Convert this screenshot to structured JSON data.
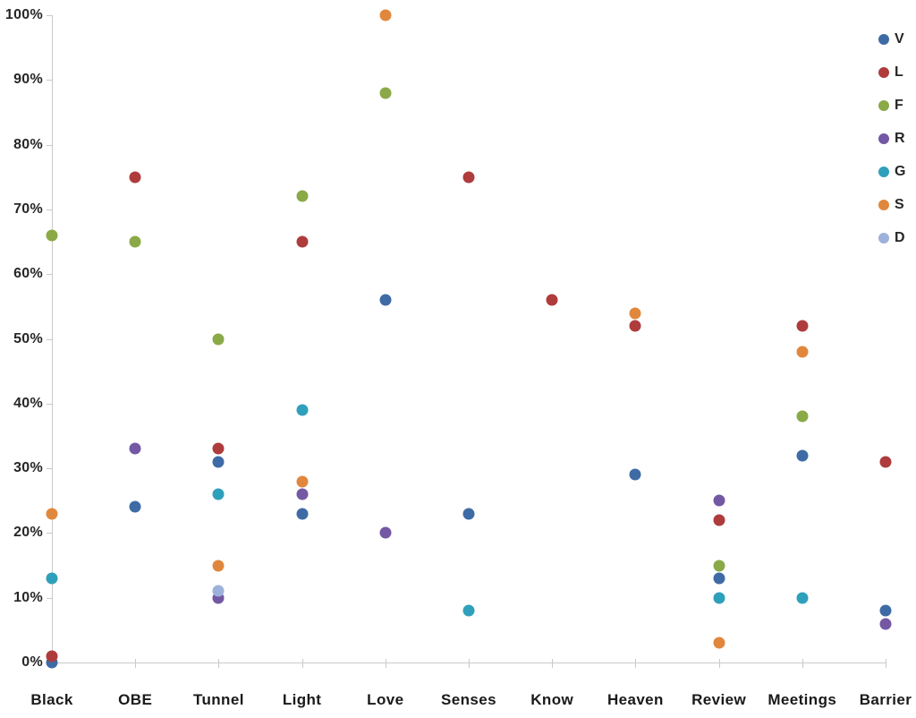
{
  "background": "#FFFFFF",
  "axis_colors": {
    "line": "#C9C9C9",
    "text": "#262626"
  },
  "chart_data": {
    "type": "scatter",
    "title": "",
    "xlabel": "",
    "ylabel": "",
    "grid": false,
    "categories": [
      "Black",
      "OBE",
      "Tunnel",
      "Light",
      "Love",
      "Senses",
      "Know",
      "Heaven",
      "Review",
      "Meetings",
      "Barrier"
    ],
    "series": [
      {
        "name": "V",
        "color": "#3E6BA5",
        "values": [
          0,
          24,
          31,
          23,
          56,
          23,
          null,
          29,
          13,
          32,
          8
        ]
      },
      {
        "name": "L",
        "color": "#AE3C3C",
        "values": [
          1,
          75,
          33,
          65,
          null,
          75,
          56,
          52,
          22,
          52,
          31
        ]
      },
      {
        "name": "F",
        "color": "#8AA947",
        "values": [
          66,
          65,
          50,
          72,
          88,
          null,
          null,
          null,
          15,
          38,
          null
        ]
      },
      {
        "name": "R",
        "color": "#7458A4",
        "values": [
          null,
          33,
          10,
          26,
          20,
          null,
          null,
          null,
          25,
          null,
          6
        ]
      },
      {
        "name": "G",
        "color": "#2FA0BB",
        "values": [
          13,
          null,
          26,
          39,
          null,
          8,
          null,
          null,
          10,
          10,
          null
        ]
      },
      {
        "name": "S",
        "color": "#E1873D",
        "values": [
          23,
          null,
          15,
          28,
          100,
          null,
          null,
          54,
          3,
          48,
          null
        ]
      },
      {
        "name": "D",
        "color": "#9DB1DB",
        "values": [
          null,
          null,
          11,
          null,
          null,
          null,
          null,
          null,
          null,
          null,
          null
        ]
      }
    ],
    "y_axis": {
      "min": 0,
      "max": 100,
      "step": 10,
      "tick_labels": [
        "0%",
        "10%",
        "20%",
        "30%",
        "40%",
        "50%",
        "60%",
        "70%",
        "80%",
        "90%",
        "100%"
      ]
    },
    "legend": {
      "position": "top-right",
      "entries": [
        "V",
        "L",
        "F",
        "R",
        "G",
        "S",
        "D"
      ]
    }
  }
}
